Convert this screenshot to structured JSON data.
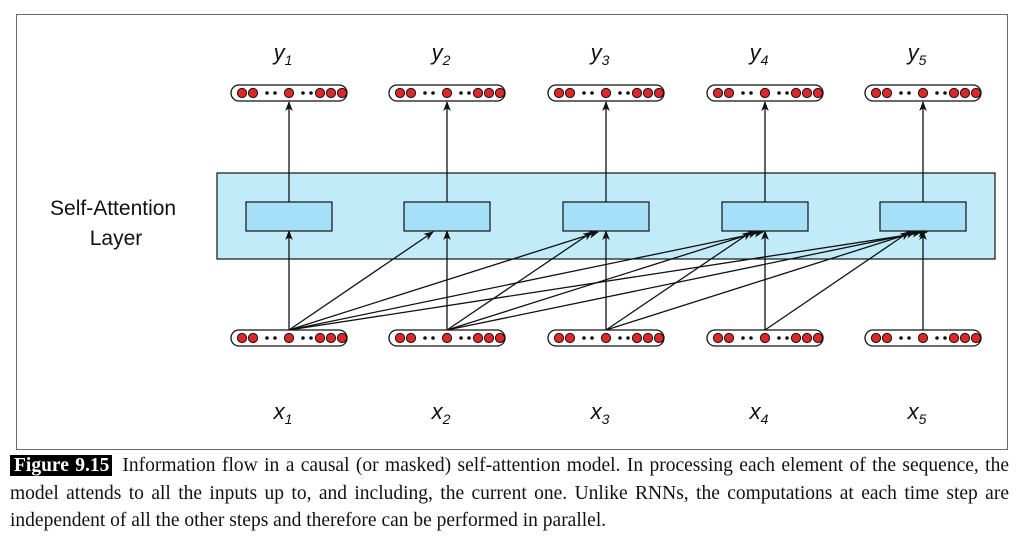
{
  "diagram": {
    "layer_label": [
      "Self-Attention",
      "Layer"
    ],
    "outputs": [
      {
        "base": "y",
        "sub": "1"
      },
      {
        "base": "y",
        "sub": "2"
      },
      {
        "base": "y",
        "sub": "3"
      },
      {
        "base": "y",
        "sub": "4"
      },
      {
        "base": "y",
        "sub": "5"
      }
    ],
    "inputs": [
      {
        "base": "x",
        "sub": "1"
      },
      {
        "base": "x",
        "sub": "2"
      },
      {
        "base": "x",
        "sub": "3"
      },
      {
        "base": "x",
        "sub": "4"
      },
      {
        "base": "x",
        "sub": "5"
      }
    ],
    "colors": {
      "layer_fill": "#c2ebfa",
      "block_fill": "#a6dff8",
      "dot_red": "#e02727",
      "stroke": "#111111",
      "frame": "#6b6b6b"
    }
  },
  "caption": {
    "label": "Figure 9.15",
    "text": "Information flow in a causal (or masked) self-attention model. In processing each element of the sequence, the model attends to all the inputs up to, and including, the current one. Unlike RNNs, the computations at each time step are independent of all the other steps and therefore can be performed in parallel."
  }
}
